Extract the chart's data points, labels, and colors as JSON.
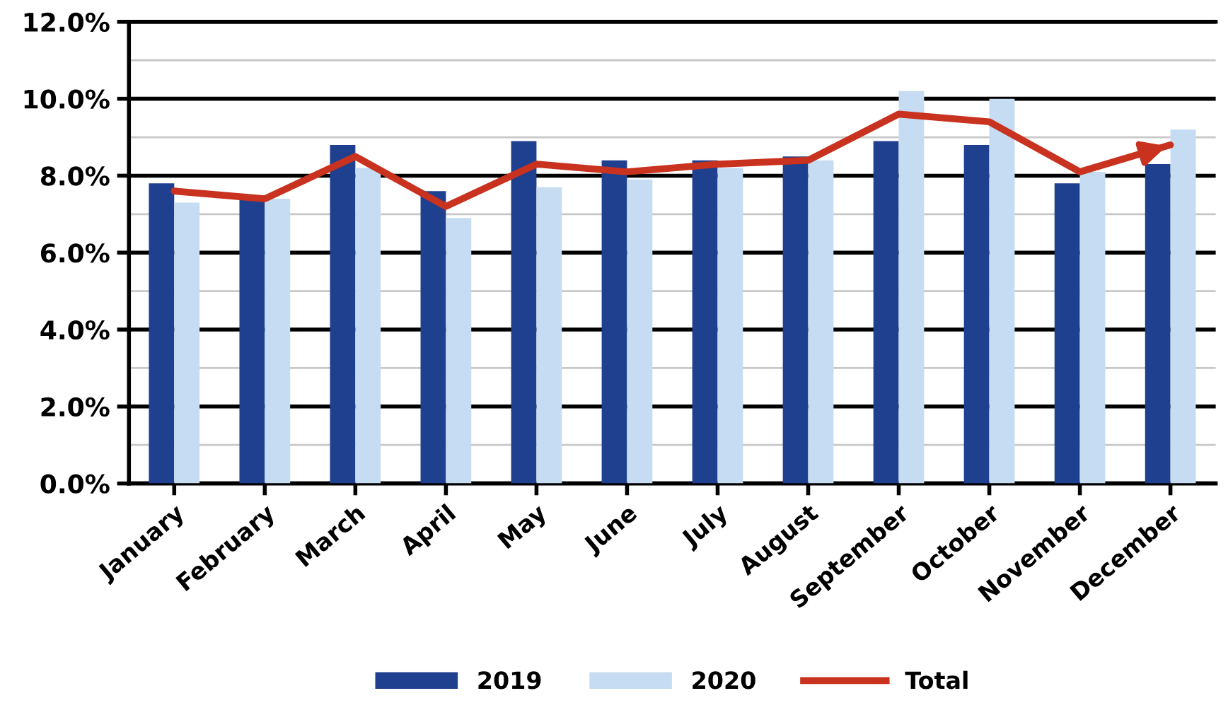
{
  "chart_data": {
    "type": "bar",
    "categories": [
      "January",
      "February",
      "March",
      "April",
      "May",
      "June",
      "July",
      "August",
      "September",
      "October",
      "November",
      "December"
    ],
    "series": [
      {
        "name": "2019",
        "color": "#1f3f8f",
        "values": [
          7.8,
          7.4,
          8.8,
          7.6,
          8.9,
          8.4,
          8.4,
          8.5,
          8.9,
          8.8,
          7.8,
          8.3
        ]
      },
      {
        "name": "2020",
        "color": "#c5dcf2",
        "values": [
          7.3,
          7.4,
          8.2,
          6.9,
          7.7,
          7.9,
          8.2,
          8.4,
          10.2,
          10.0,
          8.1,
          9.2
        ]
      },
      {
        "name": "Total",
        "type": "line",
        "color": "#c8321e",
        "values": [
          7.6,
          7.4,
          8.5,
          7.2,
          8.3,
          8.1,
          8.3,
          8.4,
          9.6,
          9.4,
          8.1,
          8.8
        ]
      }
    ],
    "ylim": [
      0,
      12
    ],
    "yticks": [
      {
        "value": 0,
        "label": "0.0%"
      },
      {
        "value": 1,
        "label": null
      },
      {
        "value": 2,
        "label": "2.0%"
      },
      {
        "value": 3,
        "label": null
      },
      {
        "value": 4,
        "label": "4.0%"
      },
      {
        "value": 5,
        "label": null
      },
      {
        "value": 6,
        "label": "6.0%"
      },
      {
        "value": 7,
        "label": null
      },
      {
        "value": 8,
        "label": "8.0%"
      },
      {
        "value": 9,
        "label": null
      },
      {
        "value": 10,
        "label": "10.0%"
      },
      {
        "value": 11,
        "label": null
      },
      {
        "value": 12,
        "label": "12.0%"
      }
    ],
    "grid": "y",
    "legend": "bottom",
    "marker": "none",
    "line_style": "solid"
  }
}
